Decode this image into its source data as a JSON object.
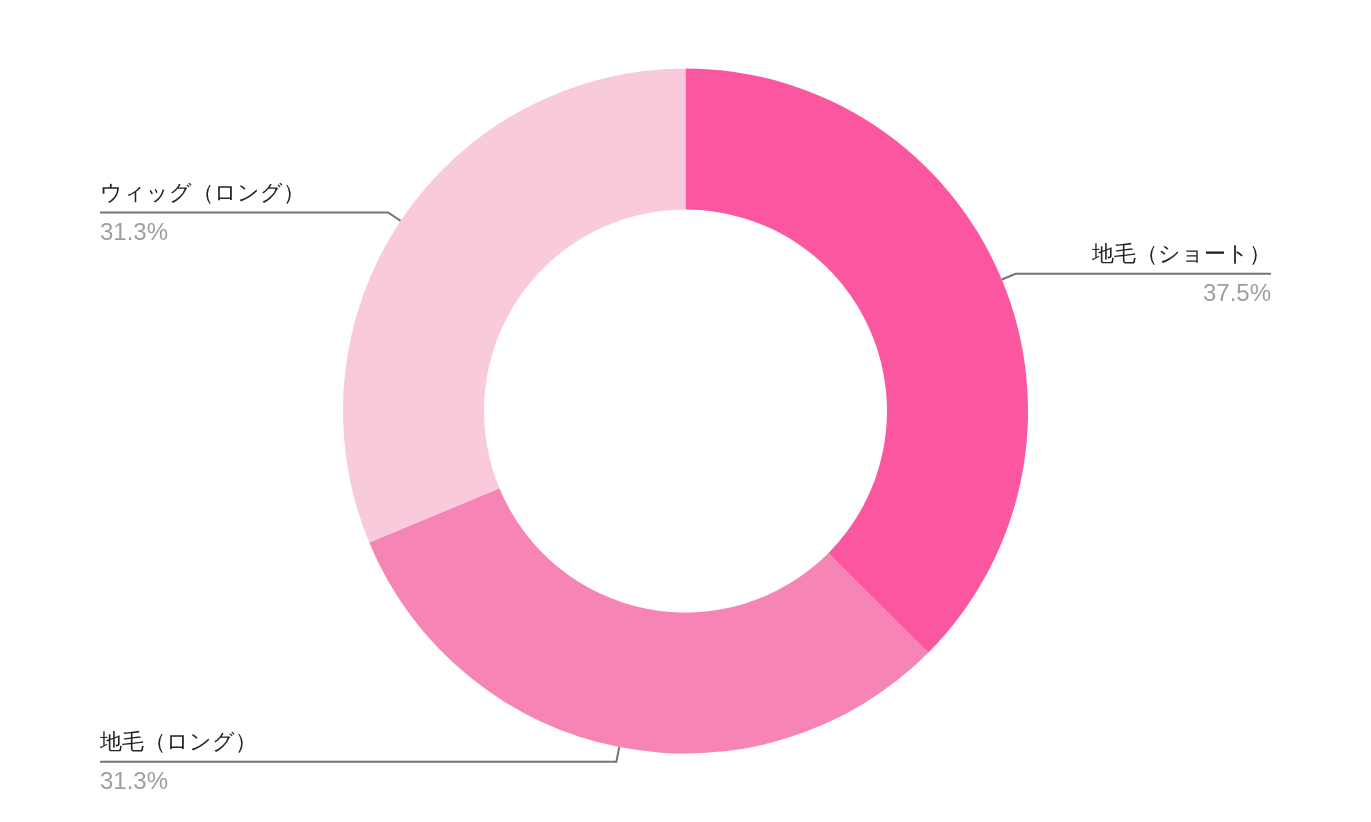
{
  "chart_data": {
    "type": "donut",
    "categories": [
      "地毛（ショート）",
      "地毛（ロング）",
      "ウィッグ（ロング）"
    ],
    "values": [
      37.5,
      31.3,
      31.3
    ],
    "value_labels": [
      "37.5%",
      "31.3%",
      "31.3%"
    ],
    "colors": [
      "#fa57a0",
      "#f684b4",
      "#f9c9dc"
    ],
    "legend": false
  }
}
